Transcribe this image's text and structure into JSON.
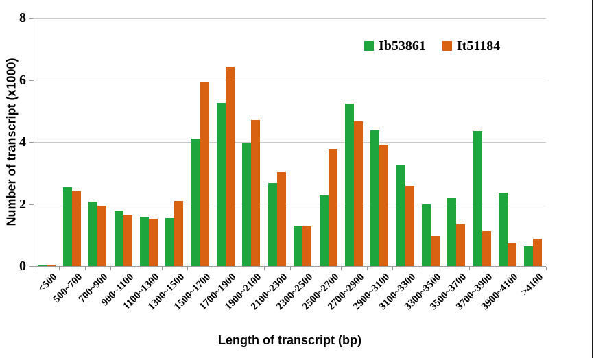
{
  "chart_data": {
    "type": "bar",
    "title": "",
    "xlabel": "Length of transcript (bp)",
    "ylabel": "Number of transcript (x1000)",
    "ylim": [
      0,
      8
    ],
    "yticks": [
      0,
      2,
      4,
      6,
      8
    ],
    "grid": "horizontal",
    "legend_position": "top-right-inside",
    "categories": [
      "<500",
      "500~700",
      "700~900",
      "900~1100",
      "1100~1300",
      "1300~1500",
      "1500~1700",
      "1700~1900",
      "1900~2100",
      "2100~2300",
      "2300~2500",
      "2500~2700",
      "2700~2900",
      "2900~3100",
      "3100~3300",
      "3300~3500",
      "3500~3700",
      "3700~3900",
      "3900~4100",
      ">4100"
    ],
    "series": [
      {
        "name": "Ib53861",
        "color": "#1fa53d",
        "values": [
          0.05,
          2.55,
          2.08,
          1.78,
          1.6,
          1.55,
          4.1,
          5.27,
          3.97,
          2.67,
          1.31,
          2.28,
          5.24,
          4.38,
          3.28,
          2.0,
          2.2,
          4.35,
          2.36,
          0.65
        ]
      },
      {
        "name": "It51184",
        "color": "#d96212",
        "values": [
          0.05,
          2.4,
          1.94,
          1.66,
          1.52,
          2.1,
          5.92,
          6.43,
          4.7,
          3.03,
          1.28,
          3.78,
          4.66,
          3.92,
          2.58,
          0.97,
          1.34,
          1.13,
          0.73,
          0.89
        ]
      }
    ],
    "colors": {
      "gridline": "#c9c9c9",
      "axis": "#9c9c9c",
      "text": "#000000",
      "background": "#ffffff",
      "page_border": "#1a1a1a"
    }
  }
}
